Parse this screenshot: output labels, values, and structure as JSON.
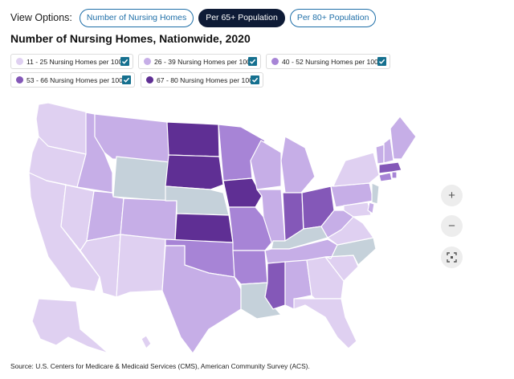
{
  "view_options": {
    "label": "View Options:",
    "buttons": [
      {
        "label": "Number of Nursing Homes",
        "active": false
      },
      {
        "label": "Per 65+ Population",
        "active": true
      },
      {
        "label": "Per 80+ Population",
        "active": false
      }
    ]
  },
  "map_title": "Number of Nursing Homes, Nationwide, 2020",
  "legend": [
    {
      "label": "11 - 25 Nursing Homes per 100K",
      "color": "#dfd0f1",
      "checked": true
    },
    {
      "label": "26 - 39 Nursing Homes per 100K",
      "color": "#c6aee7",
      "checked": true
    },
    {
      "label": "40 - 52 Nursing Homes per 100K",
      "color": "#a784d6",
      "checked": true
    },
    {
      "label": "53 - 66 Nursing Homes per 100K",
      "color": "#8458b8",
      "checked": true
    },
    {
      "label": "67 - 80 Nursing Homes per 100K",
      "color": "#5f2f94",
      "checked": true
    }
  ],
  "colors": {
    "bin1": "#dfd0f1",
    "bin2": "#c6aee7",
    "bin3": "#a784d6",
    "bin4": "#8458b8",
    "bin5": "#5f2f94",
    "no_data": "#c5d1da",
    "accent": "#15708f",
    "active_button": "#0e1b36"
  },
  "zoom_controls": {
    "zoom_in": "+",
    "zoom_out": "−"
  },
  "source": "Source: U.S. Centers for Medicare & Medicaid Services (CMS), American Community Survey (ACS)."
}
